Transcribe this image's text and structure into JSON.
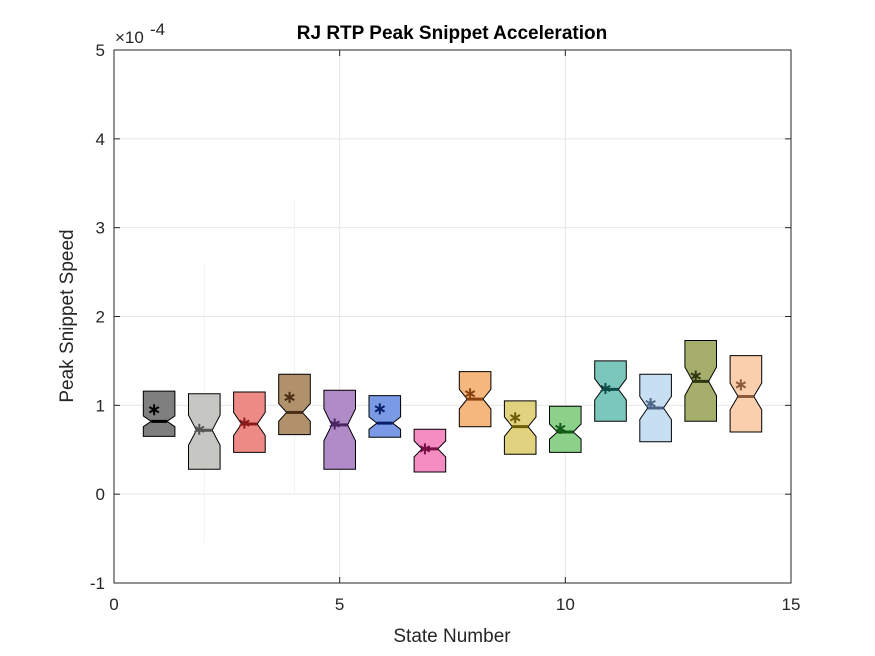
{
  "chart_data": {
    "type": "box",
    "title": "RJ  RTP Peak Snippet Acceleration",
    "xlabel": "State Number",
    "ylabel": "Peak Snippet Speed",
    "y_exponent_label": "×10",
    "y_exponent_power": "-4",
    "xlim": [
      0,
      15
    ],
    "ylim": [
      -1,
      5
    ],
    "y_scale_multiplier": 0.0001,
    "xticks": [
      "0",
      "5",
      "10",
      "15"
    ],
    "yticks": [
      "-1",
      "0",
      "1",
      "2",
      "3",
      "4",
      "5"
    ],
    "grid": true,
    "box_width": 0.7,
    "series": [
      {
        "x": 1,
        "q1": 0.65,
        "median": 0.82,
        "q3": 1.16,
        "notch_low": 0.76,
        "notch_high": 0.88,
        "mean": 0.95,
        "color": "#7f7f7f",
        "mean_color": "#000000"
      },
      {
        "x": 2,
        "q1": 0.28,
        "median": 0.72,
        "q3": 1.13,
        "notch_low": 0.55,
        "notch_high": 0.89,
        "mean": 0.73,
        "color": "#c6c6c2",
        "mean_color": "#555555",
        "whisker_low": -0.55,
        "whisker_high": 2.6
      },
      {
        "x": 3,
        "q1": 0.47,
        "median": 0.79,
        "q3": 1.15,
        "notch_low": 0.66,
        "notch_high": 0.92,
        "mean": 0.8,
        "color": "#ee8a86",
        "mean_color": "#8b1a1a"
      },
      {
        "x": 4,
        "q1": 0.67,
        "median": 0.92,
        "q3": 1.35,
        "notch_low": 0.82,
        "notch_high": 1.02,
        "mean": 1.09,
        "color": "#b0916b",
        "mean_color": "#4a2e14",
        "whisker_low": 0.0,
        "whisker_high": 3.3
      },
      {
        "x": 5,
        "q1": 0.28,
        "median": 0.78,
        "q3": 1.17,
        "notch_low": 0.6,
        "notch_high": 0.96,
        "mean": 0.79,
        "color": "#b18ac8",
        "mean_color": "#4b2463"
      },
      {
        "x": 6,
        "q1": 0.64,
        "median": 0.8,
        "q3": 1.11,
        "notch_low": 0.73,
        "notch_high": 0.87,
        "mean": 0.96,
        "color": "#7a9ae6",
        "mean_color": "#0a1f6b"
      },
      {
        "x": 7,
        "q1": 0.25,
        "median": 0.51,
        "q3": 0.73,
        "notch_low": 0.42,
        "notch_high": 0.6,
        "mean": 0.51,
        "color": "#f58cc2",
        "mean_color": "#7a0f45"
      },
      {
        "x": 8,
        "q1": 0.76,
        "median": 1.07,
        "q3": 1.38,
        "notch_low": 0.96,
        "notch_high": 1.18,
        "mean": 1.13,
        "color": "#f5b77e",
        "mean_color": "#8a4210"
      },
      {
        "x": 9,
        "q1": 0.45,
        "median": 0.76,
        "q3": 1.05,
        "notch_low": 0.65,
        "notch_high": 0.87,
        "mean": 0.86,
        "color": "#e0d27e",
        "mean_color": "#6e5e08"
      },
      {
        "x": 10,
        "q1": 0.47,
        "median": 0.7,
        "q3": 0.99,
        "notch_low": 0.62,
        "notch_high": 0.79,
        "mean": 0.74,
        "color": "#8cd18a",
        "mean_color": "#145a18"
      },
      {
        "x": 11,
        "q1": 0.82,
        "median": 1.18,
        "q3": 1.5,
        "notch_low": 1.06,
        "notch_high": 1.3,
        "mean": 1.19,
        "color": "#7cc7bb",
        "mean_color": "#0d4d4a"
      },
      {
        "x": 12,
        "q1": 0.59,
        "median": 0.97,
        "q3": 1.35,
        "notch_low": 0.84,
        "notch_high": 1.1,
        "mean": 1.02,
        "color": "#c7dff2",
        "mean_color": "#4a6585"
      },
      {
        "x": 13,
        "q1": 0.82,
        "median": 1.27,
        "q3": 1.73,
        "notch_low": 1.11,
        "notch_high": 1.43,
        "mean": 1.33,
        "color": "#a6ae6c",
        "mean_color": "#2f3610"
      },
      {
        "x": 14,
        "q1": 0.7,
        "median": 1.1,
        "q3": 1.56,
        "notch_low": 0.95,
        "notch_high": 1.25,
        "mean": 1.23,
        "color": "#f9cfae",
        "mean_color": "#8a5a3a"
      }
    ]
  }
}
